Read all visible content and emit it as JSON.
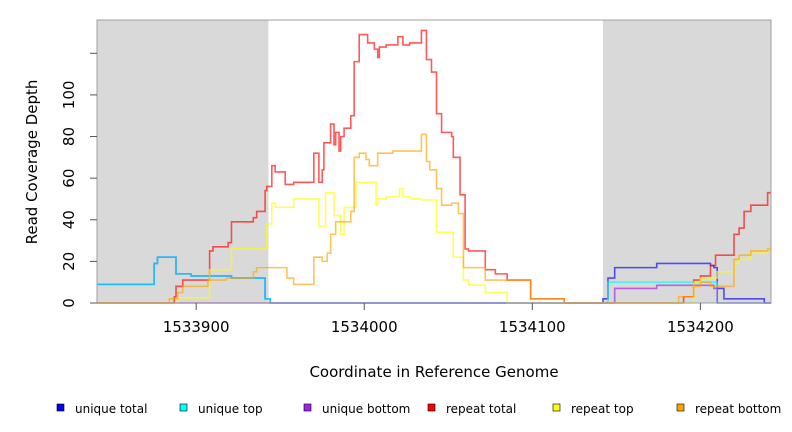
{
  "chart_data": {
    "type": "line",
    "step": true,
    "title": "",
    "xlabel": "Coordinate in Reference Genome",
    "ylabel": "Read Coverage Depth",
    "xlim": [
      1533841,
      1534242
    ],
    "ylim": [
      0,
      136
    ],
    "xticks": [
      1533900,
      1534000,
      1534100,
      1534200
    ],
    "yticks": [
      0,
      20,
      40,
      60,
      80,
      100,
      120
    ],
    "ytick_labels": [
      "0",
      "20",
      "40",
      "60",
      "80",
      "100",
      ""
    ],
    "shaded_regions": [
      [
        1533841,
        1533943
      ],
      [
        1534142,
        1534242
      ]
    ],
    "shade_color": "#d9d9d9",
    "legend_position": "bottom",
    "series": [
      {
        "name": "unique total",
        "color": "#0000ff",
        "points": [
          [
            1533841,
            9
          ],
          [
            1533875,
            19
          ],
          [
            1533877,
            22
          ],
          [
            1533888,
            14
          ],
          [
            1533897,
            13
          ],
          [
            1533921,
            12
          ],
          [
            1533941,
            2
          ],
          [
            1533944,
            0
          ],
          [
            1534142,
            2
          ],
          [
            1534145,
            12
          ],
          [
            1534149,
            17
          ],
          [
            1534174,
            19
          ],
          [
            1534206,
            18
          ],
          [
            1534208,
            17
          ],
          [
            1534210,
            7
          ],
          [
            1534214,
            2
          ],
          [
            1534238,
            0
          ],
          [
            1534242,
            0
          ]
        ]
      },
      {
        "name": "unique top",
        "color": "#00ffff",
        "points": [
          [
            1533841,
            9
          ],
          [
            1533875,
            19
          ],
          [
            1533877,
            22
          ],
          [
            1533888,
            14
          ],
          [
            1533897,
            13
          ],
          [
            1533921,
            12
          ],
          [
            1533941,
            2
          ],
          [
            1533944,
            0
          ],
          [
            1534145,
            10
          ],
          [
            1534210,
            0
          ],
          [
            1534242,
            0
          ]
        ]
      },
      {
        "name": "unique bottom",
        "color": "#a020f0",
        "points": [
          [
            1533841,
            0
          ],
          [
            1534149,
            7
          ],
          [
            1534174,
            8.5
          ],
          [
            1534208,
            7
          ],
          [
            1534210,
            0
          ],
          [
            1534242,
            0
          ]
        ]
      },
      {
        "name": "repeat total",
        "color": "#ff0000",
        "points": [
          [
            1533841,
            0
          ],
          [
            1533887,
            3
          ],
          [
            1533888,
            8
          ],
          [
            1533892,
            11
          ],
          [
            1533908,
            25
          ],
          [
            1533910,
            27
          ],
          [
            1533919,
            29
          ],
          [
            1533921,
            39
          ],
          [
            1533934,
            41
          ],
          [
            1533936,
            44
          ],
          [
            1533941,
            54
          ],
          [
            1533942,
            56
          ],
          [
            1533945,
            66
          ],
          [
            1533947,
            63
          ],
          [
            1533953,
            57
          ],
          [
            1533958,
            58
          ],
          [
            1533970,
            72
          ],
          [
            1533973,
            58
          ],
          [
            1533975,
            64
          ],
          [
            1533976,
            77
          ],
          [
            1533980,
            86
          ],
          [
            1533982,
            76
          ],
          [
            1533983,
            82
          ],
          [
            1533985,
            73
          ],
          [
            1533986,
            80
          ],
          [
            1533988,
            84
          ],
          [
            1533992,
            90
          ],
          [
            1533994,
            116
          ],
          [
            1533997,
            129
          ],
          [
            1534002,
            125
          ],
          [
            1534006,
            122
          ],
          [
            1534008,
            118
          ],
          [
            1534009,
            123
          ],
          [
            1534013,
            124
          ],
          [
            1534020,
            128
          ],
          [
            1534023,
            124
          ],
          [
            1534027,
            125
          ],
          [
            1534034,
            131
          ],
          [
            1534037,
            117
          ],
          [
            1534040,
            111
          ],
          [
            1534043,
            91
          ],
          [
            1534046,
            82
          ],
          [
            1534052,
            80
          ],
          [
            1534053,
            70
          ],
          [
            1534057,
            52
          ],
          [
            1534060,
            26
          ],
          [
            1534062,
            25
          ],
          [
            1534072,
            16
          ],
          [
            1534078,
            14
          ],
          [
            1534085,
            11
          ],
          [
            1534099,
            2
          ],
          [
            1534119,
            0
          ],
          [
            1534190,
            3
          ],
          [
            1534196,
            11
          ],
          [
            1534200,
            13
          ],
          [
            1534206,
            18
          ],
          [
            1534209,
            23
          ],
          [
            1534220,
            33
          ],
          [
            1534223,
            36
          ],
          [
            1534226,
            44
          ],
          [
            1534230,
            47
          ],
          [
            1534240,
            53
          ],
          [
            1534242,
            53
          ]
        ]
      },
      {
        "name": "repeat top",
        "color": "#ffff00",
        "points": [
          [
            1533841,
            0
          ],
          [
            1533889,
            2.5
          ],
          [
            1533908,
            16
          ],
          [
            1533921,
            26
          ],
          [
            1533942,
            38
          ],
          [
            1533945,
            48
          ],
          [
            1533947,
            46
          ],
          [
            1533958,
            50
          ],
          [
            1533973,
            37
          ],
          [
            1533977,
            53
          ],
          [
            1533982,
            42
          ],
          [
            1533986,
            33
          ],
          [
            1533988,
            46
          ],
          [
            1533995,
            58
          ],
          [
            1534007,
            47
          ],
          [
            1534008,
            50
          ],
          [
            1534013,
            51
          ],
          [
            1534021,
            55
          ],
          [
            1534023,
            51
          ],
          [
            1534028,
            50
          ],
          [
            1534034,
            49.5
          ],
          [
            1534043,
            34
          ],
          [
            1534053,
            22
          ],
          [
            1534059,
            11
          ],
          [
            1534062,
            8.6
          ],
          [
            1534072,
            5
          ],
          [
            1534085,
            0
          ],
          [
            1534196,
            10
          ],
          [
            1534200,
            12
          ],
          [
            1534210,
            15
          ],
          [
            1534220,
            19
          ],
          [
            1534223,
            21
          ],
          [
            1534230,
            24
          ],
          [
            1534240,
            26
          ],
          [
            1534242,
            26
          ]
        ]
      },
      {
        "name": "repeat bottom",
        "color": "#ffa500",
        "points": [
          [
            1533841,
            0
          ],
          [
            1533884,
            2
          ],
          [
            1533889,
            5
          ],
          [
            1533892,
            8
          ],
          [
            1533907,
            11
          ],
          [
            1533918,
            12
          ],
          [
            1533934,
            15
          ],
          [
            1533936,
            17
          ],
          [
            1533954,
            12
          ],
          [
            1533958,
            9
          ],
          [
            1533970,
            22
          ],
          [
            1533975,
            20
          ],
          [
            1533978,
            24
          ],
          [
            1533980,
            33
          ],
          [
            1533983,
            39
          ],
          [
            1533992,
            44
          ],
          [
            1533994,
            70
          ],
          [
            1533997,
            72
          ],
          [
            1534001,
            69
          ],
          [
            1534003,
            66
          ],
          [
            1534008,
            72
          ],
          [
            1534017,
            73
          ],
          [
            1534034,
            81
          ],
          [
            1534037,
            68
          ],
          [
            1534039,
            64
          ],
          [
            1534043,
            55
          ],
          [
            1534046,
            47
          ],
          [
            1534052,
            48
          ],
          [
            1534056,
            43
          ],
          [
            1534059,
            17
          ],
          [
            1534072,
            11
          ],
          [
            1534099,
            2
          ],
          [
            1534119,
            0
          ],
          [
            1534187,
            3
          ],
          [
            1534196,
            8
          ],
          [
            1534200,
            10
          ],
          [
            1534206,
            8
          ],
          [
            1534220,
            21
          ],
          [
            1534223,
            23
          ],
          [
            1534230,
            25
          ],
          [
            1534240,
            26
          ],
          [
            1534242,
            26
          ]
        ]
      }
    ]
  }
}
